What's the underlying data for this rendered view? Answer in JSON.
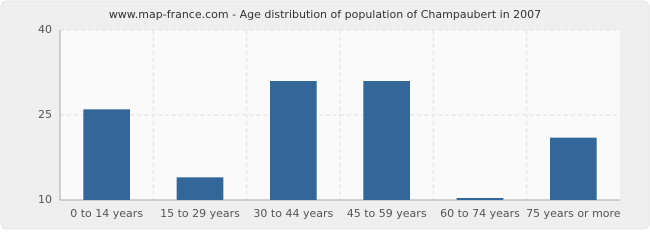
{
  "chart_data": {
    "type": "bar",
    "title": "www.map-france.com - Age distribution of population of Champaubert in 2007",
    "categories": [
      "0 to 14 years",
      "15 to 29 years",
      "30 to 44 years",
      "45 to 59 years",
      "60 to 74 years",
      "75 years or more"
    ],
    "values": [
      26,
      14,
      31,
      31,
      10,
      21
    ],
    "color": "#336699",
    "ylim": [
      10,
      40
    ],
    "yticks": [
      10,
      25,
      40
    ],
    "grid": true
  }
}
